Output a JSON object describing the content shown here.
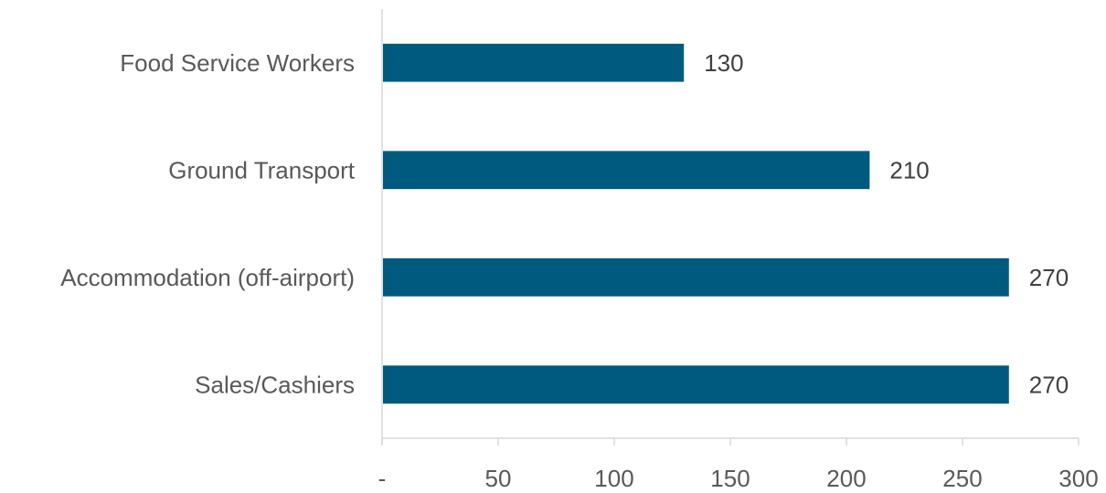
{
  "chart_data": {
    "type": "bar",
    "orientation": "horizontal",
    "categories": [
      "Food Service Workers",
      "Ground Transport",
      "Accommodation (off-airport)",
      "Sales/Cashiers"
    ],
    "values": [
      130,
      210,
      270,
      270
    ],
    "data_labels": [
      "130",
      "210",
      "270",
      "270"
    ],
    "title": "",
    "xlabel": "",
    "ylabel": "",
    "xlim": [
      0,
      300
    ],
    "xticks": [
      0,
      50,
      100,
      150,
      200,
      250,
      300
    ],
    "xtick_labels": [
      "-",
      "50",
      "100",
      "150",
      "200",
      "250",
      "300"
    ],
    "grid": false,
    "legend": "none",
    "colors": {
      "bar": "#005a7f",
      "axis": "#d9d9d9",
      "label_text": "#595959",
      "value_text": "#404040"
    }
  }
}
